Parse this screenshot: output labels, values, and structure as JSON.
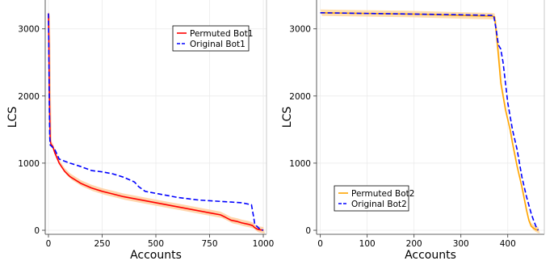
{
  "chart_data": [
    {
      "type": "line",
      "xlabel": "Accounts",
      "ylabel": "LCS",
      "xlim": [
        -15,
        1015
      ],
      "ylim": [
        -60,
        3430
      ],
      "xticks": [
        0,
        250,
        500,
        750,
        1000
      ],
      "yticks": [
        0,
        1000,
        2000,
        3000
      ],
      "grid": true,
      "legend_position": "top-right",
      "series": [
        {
          "name": "Permuted Bot1",
          "color": "#ff0000",
          "dash": "solid",
          "band": true,
          "band_color": "#ffcc99",
          "x": [
            0,
            2,
            4,
            6,
            8,
            12,
            20,
            30,
            50,
            75,
            100,
            150,
            200,
            250,
            300,
            350,
            400,
            450,
            500,
            550,
            600,
            650,
            700,
            750,
            800,
            820,
            850,
            880,
            900,
            930,
            950,
            960,
            970,
            980,
            990,
            1000
          ],
          "y": [
            3230,
            2750,
            2100,
            1700,
            1350,
            1280,
            1250,
            1150,
            1000,
            880,
            800,
            700,
            630,
            580,
            540,
            500,
            470,
            440,
            410,
            380,
            350,
            320,
            290,
            260,
            230,
            200,
            150,
            130,
            110,
            90,
            70,
            40,
            20,
            10,
            5,
            0
          ]
        },
        {
          "name": "Original Bot1",
          "color": "#0000ff",
          "dash": "dashed",
          "band": false,
          "x": [
            0,
            2,
            4,
            6,
            8,
            12,
            30,
            50,
            100,
            150,
            200,
            250,
            300,
            350,
            400,
            420,
            450,
            500,
            550,
            600,
            650,
            700,
            750,
            800,
            850,
            900,
            945,
            955,
            960,
            970,
            980,
            990,
            1000
          ],
          "y": [
            3230,
            2600,
            1900,
            1400,
            1270,
            1260,
            1200,
            1060,
            1000,
            950,
            890,
            870,
            840,
            790,
            720,
            650,
            580,
            550,
            520,
            490,
            470,
            450,
            440,
            430,
            420,
            410,
            380,
            200,
            100,
            60,
            30,
            10,
            0
          ]
        }
      ]
    },
    {
      "type": "line",
      "xlabel": "Accounts",
      "ylabel": "LCS",
      "xlim": [
        -8,
        478
      ],
      "ylim": [
        -60,
        3430
      ],
      "xticks": [
        0,
        100,
        200,
        300,
        400
      ],
      "yticks": [
        0,
        1000,
        2000,
        3000
      ],
      "grid": true,
      "legend_position": "bottom-left",
      "series": [
        {
          "name": "Permuted Bot2",
          "color": "#ffa500",
          "dash": "solid",
          "band": true,
          "band_color": "#ffd699",
          "x": [
            0,
            100,
            200,
            300,
            365,
            372,
            376,
            380,
            385,
            390,
            395,
            400,
            405,
            410,
            420,
            430,
            440,
            445,
            450,
            455,
            460,
            465
          ],
          "y": [
            3240,
            3230,
            3220,
            3200,
            3190,
            3180,
            2900,
            2600,
            2200,
            2000,
            1800,
            1650,
            1500,
            1300,
            950,
            650,
            300,
            150,
            60,
            30,
            10,
            0
          ]
        },
        {
          "name": "Original Bot2",
          "color": "#0000ff",
          "dash": "dashed",
          "band": false,
          "x": [
            0,
            100,
            200,
            300,
            370,
            375,
            380,
            385,
            390,
            395,
            400,
            405,
            410,
            420,
            430,
            440,
            450,
            455,
            460,
            465
          ],
          "y": [
            3240,
            3230,
            3220,
            3210,
            3200,
            3000,
            2760,
            2700,
            2500,
            2200,
            1900,
            1700,
            1500,
            1200,
            800,
            500,
            250,
            150,
            60,
            0
          ]
        }
      ]
    }
  ]
}
